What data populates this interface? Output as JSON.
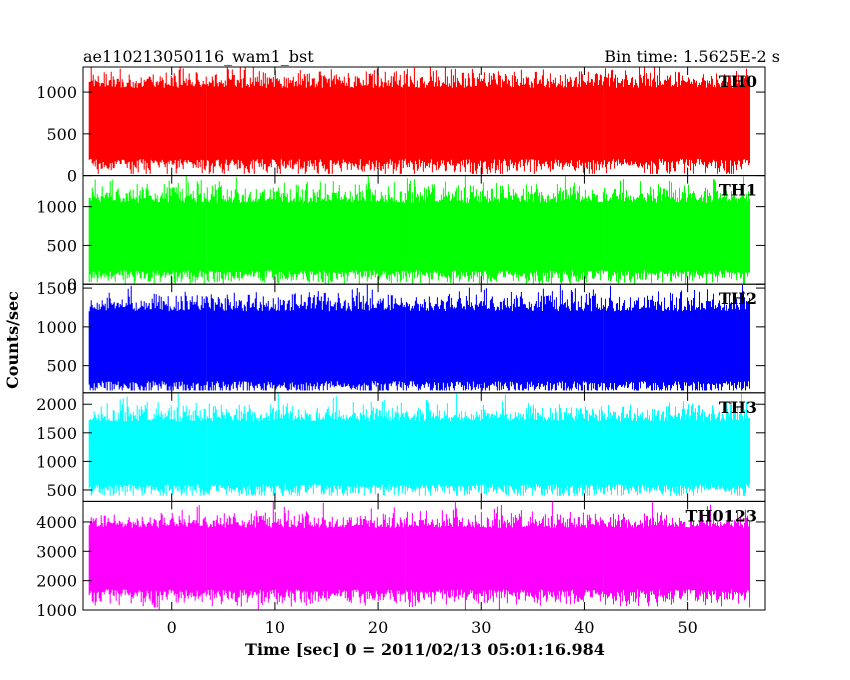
{
  "header": {
    "left_title": "ae110213050116_wam1_bst",
    "right_title": "Bin time: 1.5625E-2 s"
  },
  "chart_data": {
    "type": "line",
    "title": "ae110213050116_wam1_bst",
    "subtitle": "Bin time: 1.5625E-2 s",
    "xlabel": "Time [sec] 0 = 2011/02/13 05:01:16.984",
    "ylabel": "Counts/sec",
    "xlim": [
      -8.6,
      57.5
    ],
    "x_ticks": [
      0,
      10,
      20,
      30,
      40,
      50
    ],
    "x_data_range": [
      -8.0,
      56.0
    ],
    "bin_time": 0.015625,
    "grid": false,
    "panels": [
      {
        "name": "TH0",
        "color": "#ff0000",
        "ylim": [
          0,
          1300
        ],
        "y_ticks": [
          0,
          500,
          1000
        ],
        "mean": 600,
        "low_typical": 200,
        "high_typical": 1050,
        "min": 20,
        "max": 1300
      },
      {
        "name": "TH1",
        "color": "#00ff00",
        "ylim": [
          0,
          1400
        ],
        "y_ticks": [
          0,
          500,
          1000
        ],
        "mean": 560,
        "low_typical": 180,
        "high_typical": 1050,
        "min": 0,
        "max": 1400
      },
      {
        "name": "TH2",
        "color": "#0000ff",
        "ylim": [
          150,
          1550
        ],
        "y_ticks": [
          500,
          1000,
          1500
        ],
        "mean": 700,
        "low_typical": 300,
        "high_typical": 1200,
        "min": 180,
        "max": 1550
      },
      {
        "name": "TH3",
        "color": "#00ffff",
        "ylim": [
          300,
          2200
        ],
        "y_ticks": [
          500,
          1000,
          1500,
          2000
        ],
        "mean": 1100,
        "low_typical": 600,
        "high_typical": 1700,
        "min": 400,
        "max": 2200
      },
      {
        "name": "TH0123",
        "color": "#ff00ff",
        "ylim": [
          1000,
          4700
        ],
        "y_ticks": [
          1000,
          2000,
          3000,
          4000
        ],
        "mean": 2800,
        "low_typical": 1700,
        "high_typical": 3800,
        "min": 1000,
        "max": 4700
      }
    ]
  }
}
